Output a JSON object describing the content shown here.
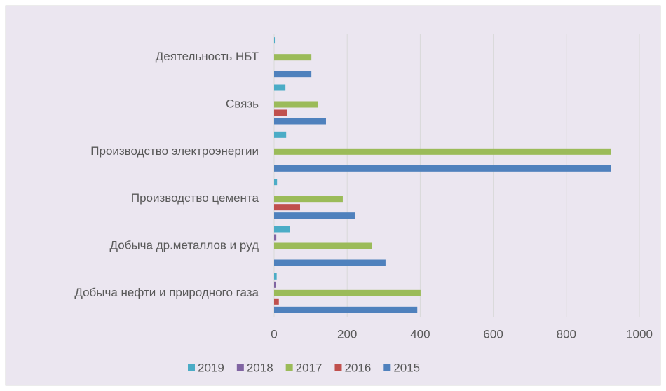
{
  "chart_data": {
    "type": "bar",
    "orientation": "horizontal",
    "categories": [
      "Добыча нефти и природного газа",
      "Добыча др.металлов и руд",
      "Производство цемента",
      "Производство электроэнергии",
      "Связь",
      "Деятельность НБТ"
    ],
    "series": [
      {
        "name": "2019",
        "color": "#4bacc6",
        "values": [
          7,
          44,
          8,
          33,
          31,
          2
        ]
      },
      {
        "name": "2018",
        "color": "#8064a2",
        "values": [
          5,
          6,
          0,
          0,
          0,
          0
        ]
      },
      {
        "name": "2017",
        "color": "#9bbb59",
        "values": [
          401,
          267,
          188,
          923,
          119,
          102
        ]
      },
      {
        "name": "2016",
        "color": "#c0504d",
        "values": [
          13,
          0,
          71,
          0,
          36,
          0
        ]
      },
      {
        "name": "2015",
        "color": "#4f81bd",
        "values": [
          392,
          305,
          221,
          923,
          142,
          102
        ]
      }
    ],
    "xlim": [
      0,
      1000
    ],
    "xticks": [
      0,
      200,
      400,
      600,
      800,
      1000
    ],
    "grid": true,
    "legend": "bottom"
  }
}
